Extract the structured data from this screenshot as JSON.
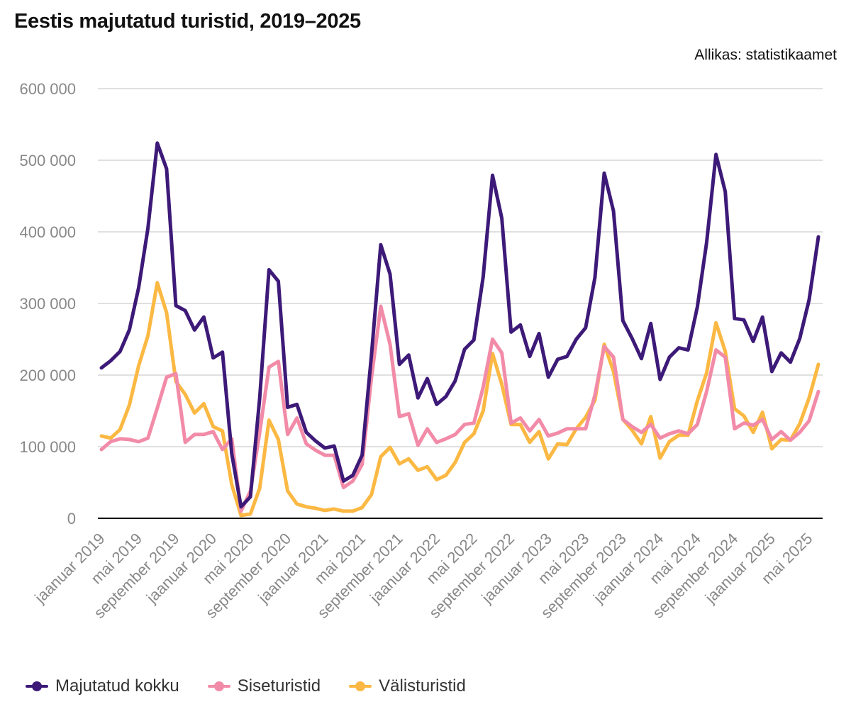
{
  "title": "Eestis majutatud turistid, 2019–2025",
  "source": "Allikas: statistikaamet",
  "chart_data": {
    "type": "line",
    "ylim": [
      0,
      600000
    ],
    "y_ticks": [
      0,
      100000,
      200000,
      300000,
      400000,
      500000,
      600000
    ],
    "y_tick_labels": [
      "0",
      "100 000",
      "200 000",
      "300 000",
      "400 000",
      "500 000",
      "600 000"
    ],
    "grid": true,
    "legend_position": "bottom-left",
    "x": [
      "2019-01",
      "2019-02",
      "2019-03",
      "2019-04",
      "2019-05",
      "2019-06",
      "2019-07",
      "2019-08",
      "2019-09",
      "2019-10",
      "2019-11",
      "2019-12",
      "2020-01",
      "2020-02",
      "2020-03",
      "2020-04",
      "2020-05",
      "2020-06",
      "2020-07",
      "2020-08",
      "2020-09",
      "2020-10",
      "2020-11",
      "2020-12",
      "2021-01",
      "2021-02",
      "2021-03",
      "2021-04",
      "2021-05",
      "2021-06",
      "2021-07",
      "2021-08",
      "2021-09",
      "2021-10",
      "2021-11",
      "2021-12",
      "2022-01",
      "2022-02",
      "2022-03",
      "2022-04",
      "2022-05",
      "2022-06",
      "2022-07",
      "2022-08",
      "2022-09",
      "2022-10",
      "2022-11",
      "2022-12",
      "2023-01",
      "2023-02",
      "2023-03",
      "2023-04",
      "2023-05",
      "2023-06",
      "2023-07",
      "2023-08",
      "2023-09",
      "2023-10",
      "2023-11",
      "2023-12",
      "2024-01",
      "2024-02",
      "2024-03",
      "2024-04",
      "2024-05",
      "2024-06",
      "2024-07",
      "2024-08",
      "2024-09",
      "2024-10",
      "2024-11",
      "2024-12",
      "2025-01",
      "2025-02",
      "2025-03",
      "2025-04",
      "2025-05",
      "2025-06"
    ],
    "x_tick_labels": [
      {
        "index": 0,
        "label": "jaanuar 2019"
      },
      {
        "index": 4,
        "label": "mai 2019"
      },
      {
        "index": 8,
        "label": "september 2019"
      },
      {
        "index": 12,
        "label": "jaanuar 2020"
      },
      {
        "index": 16,
        "label": "mai 2020"
      },
      {
        "index": 20,
        "label": "september 2020"
      },
      {
        "index": 24,
        "label": "jaanuar 2021"
      },
      {
        "index": 28,
        "label": "mai 2021"
      },
      {
        "index": 32,
        "label": "september 2021"
      },
      {
        "index": 36,
        "label": "jaanuar 2022"
      },
      {
        "index": 40,
        "label": "mai 2022"
      },
      {
        "index": 44,
        "label": "september 2022"
      },
      {
        "index": 48,
        "label": "jaanuar 2023"
      },
      {
        "index": 52,
        "label": "mai 2023"
      },
      {
        "index": 56,
        "label": "september 2023"
      },
      {
        "index": 60,
        "label": "jaanuar 2024"
      },
      {
        "index": 64,
        "label": "mai 2024"
      },
      {
        "index": 68,
        "label": "september 2024"
      },
      {
        "index": 72,
        "label": "jaanuar 2025"
      },
      {
        "index": 76,
        "label": "mai 2025"
      }
    ],
    "series": [
      {
        "name": "Majutatud kokku",
        "color": "#3d1a78",
        "values": [
          210000,
          220000,
          233000,
          263000,
          322000,
          405000,
          524000,
          488000,
          297000,
          290000,
          263000,
          281000,
          224000,
          232000,
          90000,
          16000,
          30000,
          168000,
          347000,
          331000,
          155000,
          159000,
          120000,
          108000,
          98000,
          101000,
          52000,
          60000,
          88000,
          228000,
          382000,
          341000,
          215000,
          228000,
          168000,
          195000,
          159000,
          170000,
          192000,
          236000,
          249000,
          337000,
          479000,
          419000,
          260000,
          270000,
          226000,
          258000,
          197000,
          222000,
          226000,
          250000,
          266000,
          336000,
          482000,
          429000,
          276000,
          251000,
          223000,
          272000,
          194000,
          225000,
          238000,
          235000,
          295000,
          385000,
          508000,
          456000,
          279000,
          277000,
          247000,
          281000,
          205000,
          231000,
          218000,
          251000,
          305000,
          393000
        ]
      },
      {
        "name": "Siseturistid",
        "color": "#f28ba8",
        "values": [
          96000,
          107000,
          111000,
          110000,
          107000,
          112000,
          154000,
          197000,
          202000,
          106000,
          117000,
          117000,
          121000,
          96000,
          111000,
          10000,
          38000,
          120000,
          211000,
          219000,
          117000,
          140000,
          104000,
          95000,
          88000,
          88000,
          43000,
          52000,
          75000,
          196000,
          296000,
          243000,
          142000,
          146000,
          102000,
          125000,
          106000,
          111000,
          117000,
          131000,
          133000,
          183000,
          250000,
          231000,
          133000,
          140000,
          122000,
          138000,
          115000,
          119000,
          125000,
          125000,
          125000,
          172000,
          240000,
          225000,
          138000,
          128000,
          120000,
          131000,
          112000,
          118000,
          122000,
          118000,
          131000,
          177000,
          235000,
          225000,
          125000,
          133000,
          130000,
          138000,
          110000,
          121000,
          109000,
          120000,
          136000,
          177000
        ]
      },
      {
        "name": "Välisturistid",
        "color": "#fbb843",
        "values": [
          115000,
          112000,
          124000,
          158000,
          213000,
          255000,
          329000,
          287000,
          191000,
          173000,
          147000,
          160000,
          128000,
          122000,
          47000,
          4000,
          6000,
          42000,
          137000,
          110000,
          38000,
          20000,
          16000,
          14000,
          11000,
          13000,
          10000,
          10000,
          15000,
          33000,
          86000,
          99000,
          76000,
          83000,
          67000,
          72000,
          54000,
          60000,
          78000,
          106000,
          118000,
          150000,
          230000,
          187000,
          131000,
          131000,
          106000,
          121000,
          83000,
          104000,
          103000,
          125000,
          141000,
          165000,
          243000,
          205000,
          138000,
          123000,
          104000,
          142000,
          84000,
          107000,
          116000,
          116000,
          164000,
          203000,
          273000,
          233000,
          153000,
          143000,
          120000,
          148000,
          97000,
          110000,
          109000,
          132000,
          168000,
          215000
        ]
      }
    ]
  }
}
